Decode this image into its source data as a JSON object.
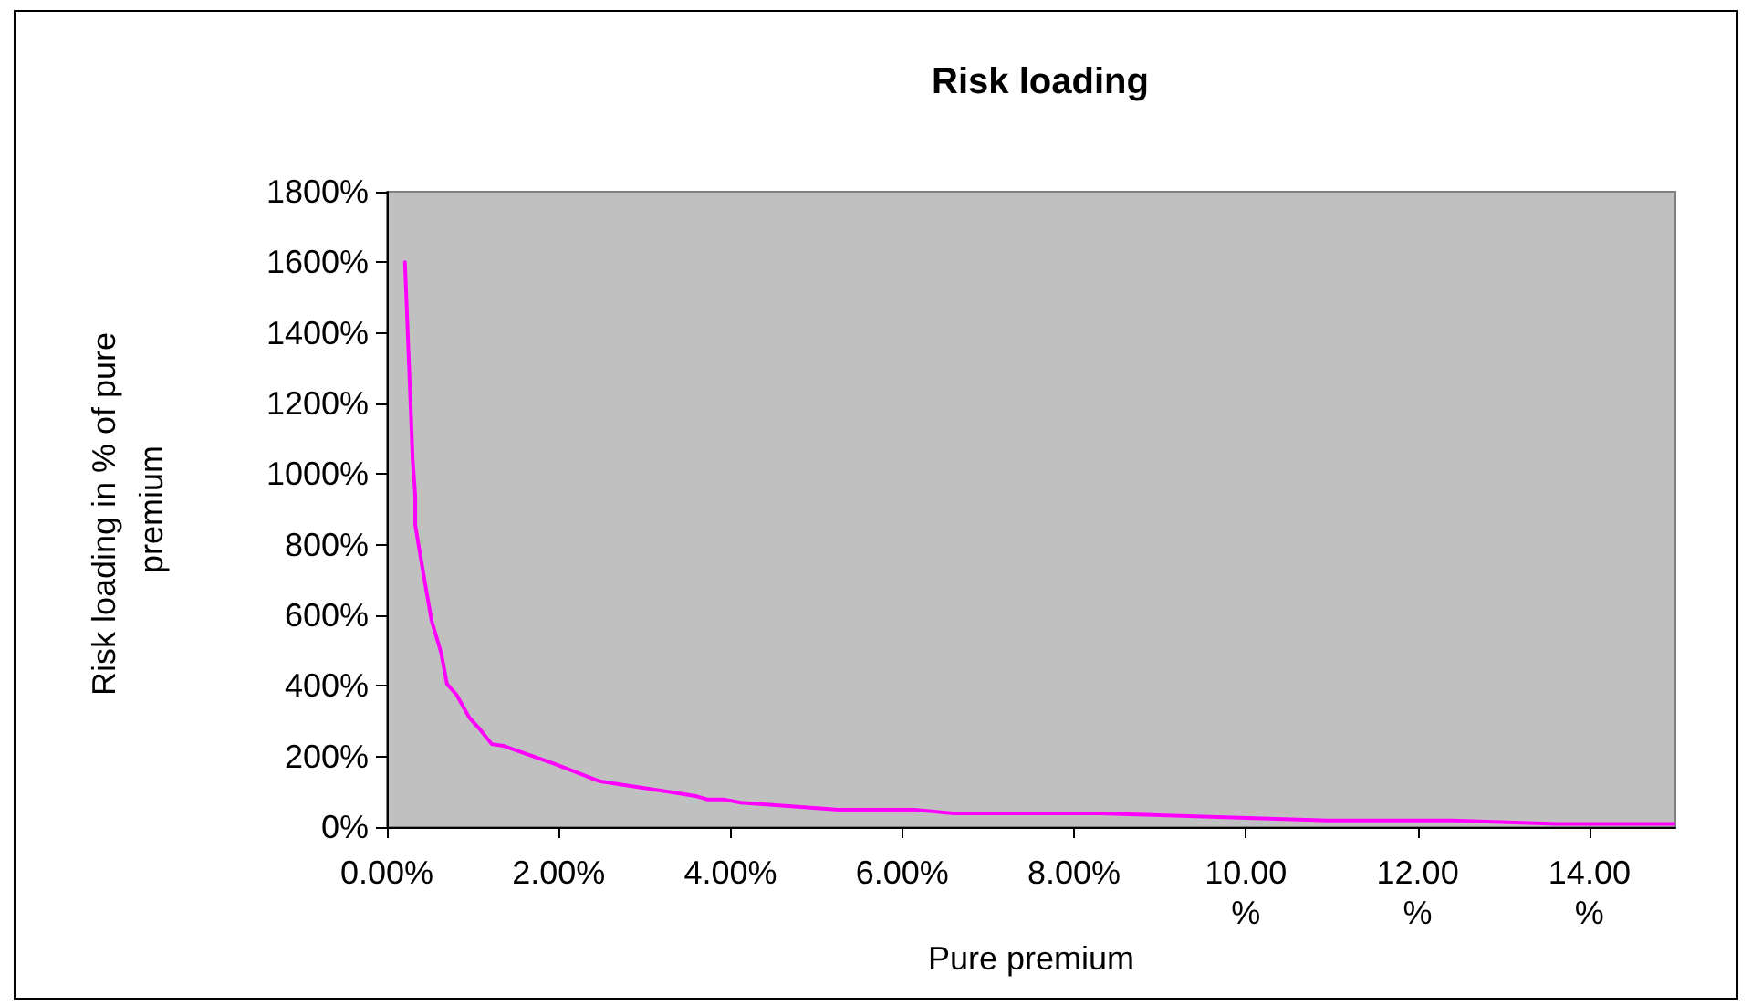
{
  "chart_data": {
    "type": "line",
    "title": "Risk loading",
    "xlabel": "Pure premium",
    "ylabel": "Risk loading in % of pure premium",
    "x": [
      0.21,
      0.28,
      0.3,
      0.33,
      0.33,
      0.42,
      0.52,
      0.63,
      0.7,
      0.81,
      0.96,
      1.09,
      1.22,
      1.36,
      1.94,
      2.47,
      3.36,
      3.59,
      3.74,
      3.93,
      4.12,
      5.26,
      6.14,
      6.59,
      8.3,
      10.96,
      12.4,
      13.62,
      14.98
    ],
    "series": [
      {
        "color": "#ff00ff",
        "values": [
          1600,
          1170,
          1040,
          940,
          855,
          725,
          585,
          495,
          405,
          375,
          310,
          275,
          235,
          230,
          180,
          130,
          97,
          88,
          78,
          78,
          69,
          49,
          49,
          39,
          39,
          19,
          19,
          9,
          9
        ]
      }
    ],
    "xlim": [
      0,
      15
    ],
    "xticks": [
      {
        "value": 0,
        "label": "0.00%"
      },
      {
        "value": 2,
        "label": "2.00%"
      },
      {
        "value": 4,
        "label": "4.00%"
      },
      {
        "value": 6,
        "label": "6.00%"
      },
      {
        "value": 8,
        "label": "8.00%"
      },
      {
        "value": 10,
        "label": "10.00\n%"
      },
      {
        "value": 12,
        "label": "12.00\n%"
      },
      {
        "value": 14,
        "label": "14.00\n%"
      }
    ],
    "ylim": [
      0,
      1800
    ],
    "yticks": [
      {
        "value": 0,
        "label": "0%"
      },
      {
        "value": 200,
        "label": "200%"
      },
      {
        "value": 400,
        "label": "400%"
      },
      {
        "value": 600,
        "label": "600%"
      },
      {
        "value": 800,
        "label": "800%"
      },
      {
        "value": 1000,
        "label": "1000%"
      },
      {
        "value": 1200,
        "label": "1200%"
      },
      {
        "value": 1400,
        "label": "1400%"
      },
      {
        "value": 1600,
        "label": "1600%"
      },
      {
        "value": 1800,
        "label": "1800%"
      }
    ],
    "grid": false,
    "marker": "none",
    "line_style": "solid"
  }
}
